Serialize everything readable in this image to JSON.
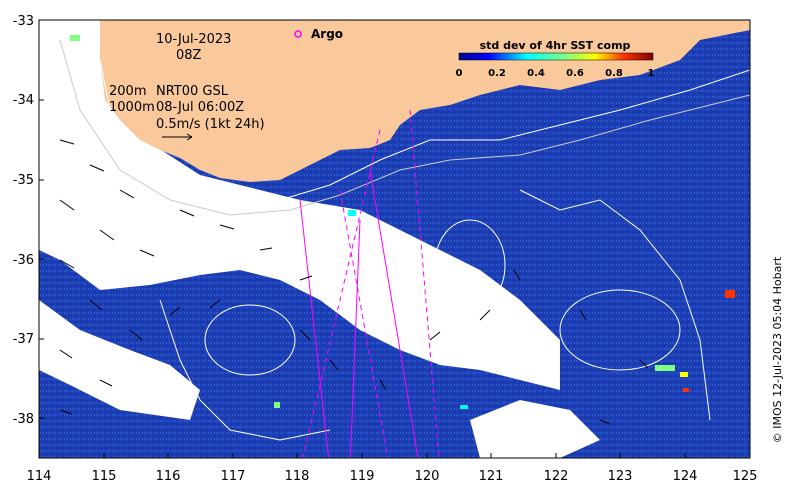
{
  "map": {
    "date": "10-Jul-2023",
    "hour": "08Z",
    "depth_200": "200m",
    "depth_1000": "1000m",
    "product": "NRT00 GSL",
    "product_time": "08-Jul 06:00Z",
    "scale_label": "0.5m/s (1kt 24h)",
    "argo_label": "Argo",
    "colorbar_title": "std dev of 4hr SST comp",
    "colorbar_ticks": [
      "0",
      "0.2",
      "0.4",
      "0.6",
      "0.8",
      "1"
    ],
    "credit": "© IMOS 12-Jul-2023 05:04 Hobart",
    "lon_ticks": [
      "114",
      "115",
      "116",
      "117",
      "118",
      "119",
      "120",
      "121",
      "122",
      "123",
      "124",
      "125"
    ],
    "lat_ticks": [
      "-33",
      "-34",
      "-35",
      "-36",
      "-37",
      "-38"
    ]
  },
  "colors": {
    "ocean": "#1a3fb0",
    "land": "#f9c89b",
    "cloud": "#ffffff",
    "argo": "#ff00ff"
  }
}
